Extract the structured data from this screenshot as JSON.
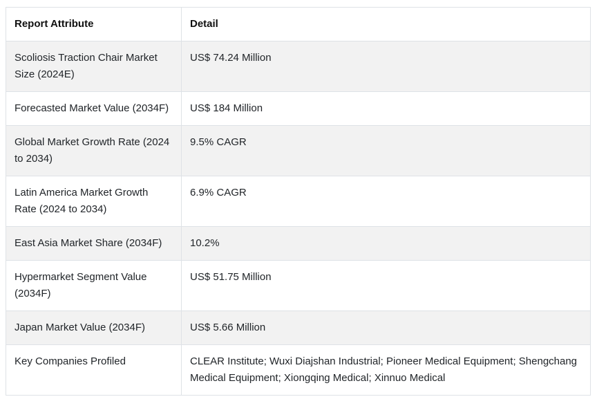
{
  "table": {
    "headers": [
      "Report Attribute",
      "Detail"
    ],
    "rows": [
      [
        "Scoliosis Traction Chair Market Size (2024E)",
        "US$ 74.24 Million"
      ],
      [
        "Forecasted Market Value (2034F)",
        "US$ 184 Million"
      ],
      [
        "Global Market Growth Rate (2024 to 2034)",
        "9.5% CAGR"
      ],
      [
        "Latin America Market Growth Rate (2024 to 2034)",
        "6.9% CAGR"
      ],
      [
        "East Asia Market Share (2034F)",
        "10.2%"
      ],
      [
        "Hypermarket Segment Value (2034F)",
        "US$ 51.75 Million"
      ],
      [
        "Japan Market Value (2034F)",
        "US$ 5.66 Million"
      ],
      [
        "Key Companies Profiled",
        "CLEAR Institute; Wuxi Diajshan Industrial; Pioneer Medical Equipment; Shengchang Medical Equipment; Xiongqing Medical; Xinnuo Medical"
      ]
    ]
  }
}
